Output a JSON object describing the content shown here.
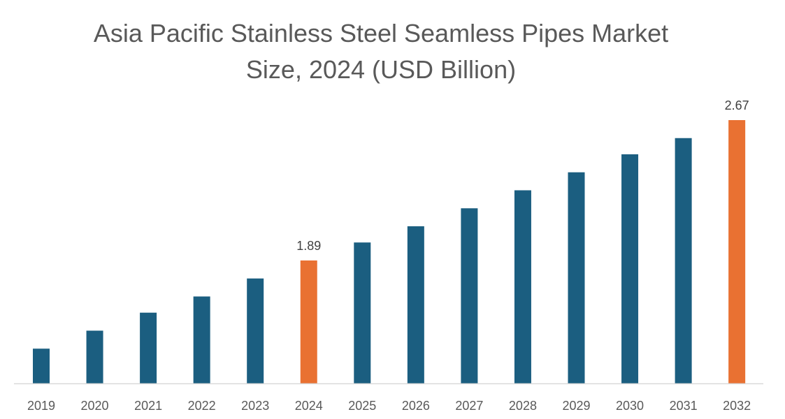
{
  "chart_data": {
    "type": "bar",
    "title_lines": [
      "Asia Pacific Stainless Steel Seamless Pipes Market",
      "Size, 2024 (USD Billion)"
    ],
    "xlabel": "",
    "ylabel": "",
    "categories": [
      "2019",
      "2020",
      "2021",
      "2022",
      "2023",
      "2024",
      "2025",
      "2026",
      "2027",
      "2028",
      "2029",
      "2030",
      "2031",
      "2032"
    ],
    "values": [
      1.4,
      1.5,
      1.6,
      1.69,
      1.79,
      1.89,
      1.99,
      2.08,
      2.18,
      2.28,
      2.38,
      2.48,
      2.57,
      2.67
    ],
    "data_labels": {
      "2024": "1.89",
      "2032": "2.67"
    },
    "highlight": [
      "2024",
      "2032"
    ],
    "ylim": [
      1.2,
      2.7
    ],
    "grid": false,
    "legend": "none",
    "colors": {
      "bar": "#1b5e80",
      "highlight": "#e97132",
      "axis": "#d9d9d9",
      "text": "#595959"
    }
  }
}
